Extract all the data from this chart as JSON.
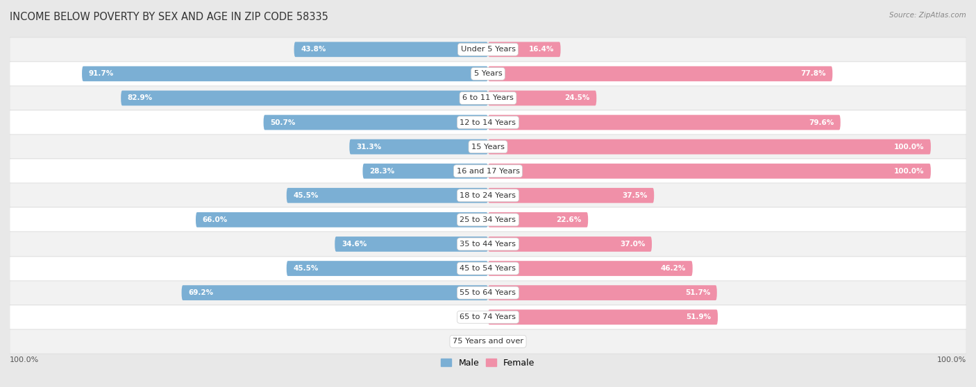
{
  "title": "INCOME BELOW POVERTY BY SEX AND AGE IN ZIP CODE 58335",
  "source": "Source: ZipAtlas.com",
  "categories": [
    "Under 5 Years",
    "5 Years",
    "6 to 11 Years",
    "12 to 14 Years",
    "15 Years",
    "16 and 17 Years",
    "18 to 24 Years",
    "25 to 34 Years",
    "35 to 44 Years",
    "45 to 54 Years",
    "55 to 64 Years",
    "65 to 74 Years",
    "75 Years and over"
  ],
  "male_values": [
    43.8,
    91.7,
    82.9,
    50.7,
    31.3,
    28.3,
    45.5,
    66.0,
    34.6,
    45.5,
    69.2,
    0.0,
    0.0
  ],
  "female_values": [
    16.4,
    77.8,
    24.5,
    79.6,
    100.0,
    100.0,
    37.5,
    22.6,
    37.0,
    46.2,
    51.7,
    51.9,
    0.0
  ],
  "male_color": "#7BAFD4",
  "female_color": "#F090A8",
  "male_color_dark": "#5A9BC4",
  "female_color_dark": "#E06080",
  "bg_color": "#e8e8e8",
  "row_bg_even": "#f2f2f2",
  "row_bg_odd": "#ffffff",
  "label_bg": "#ffffff",
  "axis_label_color": "#555555",
  "title_color": "#333333",
  "bar_height": 0.62,
  "max_value": 100.0,
  "inside_threshold_male": 12,
  "inside_threshold_female": 12
}
